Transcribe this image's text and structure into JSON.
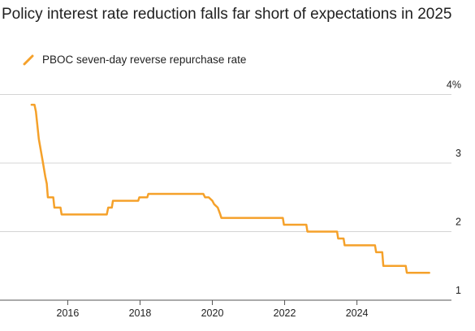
{
  "chart_data": {
    "type": "line",
    "title": "Policy interest rate reduction falls far short of expectations in 2025",
    "xlabel": "",
    "ylabel": "",
    "xlim": [
      2014.8,
      2026.3
    ],
    "ylim": [
      1,
      4.1
    ],
    "x_ticks": [
      2016,
      2018,
      2020,
      2022,
      2024
    ],
    "x_tick_labels": [
      "2016",
      "2018",
      "2020",
      "2022",
      "2024"
    ],
    "y_ticks": [
      1,
      2,
      3,
      4
    ],
    "y_tick_labels": [
      "1",
      "2",
      "3",
      "4%"
    ],
    "grid": "horizontal",
    "legend_position": "top-left",
    "series": [
      {
        "name": "PBOC seven-day reverse repurchase rate",
        "color": "#f5a12a",
        "points": [
          [
            2015.0,
            3.85
          ],
          [
            2015.08,
            3.85
          ],
          [
            2015.12,
            3.75
          ],
          [
            2015.15,
            3.6
          ],
          [
            2015.2,
            3.35
          ],
          [
            2015.3,
            3.05
          ],
          [
            2015.38,
            2.8
          ],
          [
            2015.42,
            2.7
          ],
          [
            2015.45,
            2.5
          ],
          [
            2015.6,
            2.5
          ],
          [
            2015.63,
            2.35
          ],
          [
            2015.8,
            2.35
          ],
          [
            2015.83,
            2.25
          ],
          [
            2017.08,
            2.25
          ],
          [
            2017.12,
            2.35
          ],
          [
            2017.22,
            2.35
          ],
          [
            2017.25,
            2.45
          ],
          [
            2017.95,
            2.45
          ],
          [
            2017.98,
            2.5
          ],
          [
            2018.2,
            2.5
          ],
          [
            2018.23,
            2.55
          ],
          [
            2019.75,
            2.55
          ],
          [
            2019.8,
            2.5
          ],
          [
            2019.9,
            2.5
          ],
          [
            2020.0,
            2.45
          ],
          [
            2020.05,
            2.4
          ],
          [
            2020.15,
            2.35
          ],
          [
            2020.22,
            2.25
          ],
          [
            2020.25,
            2.2
          ],
          [
            2021.95,
            2.2
          ],
          [
            2021.98,
            2.1
          ],
          [
            2022.6,
            2.1
          ],
          [
            2022.63,
            2.0
          ],
          [
            2023.45,
            2.0
          ],
          [
            2023.48,
            1.9
          ],
          [
            2023.63,
            1.9
          ],
          [
            2023.66,
            1.8
          ],
          [
            2024.5,
            1.8
          ],
          [
            2024.53,
            1.7
          ],
          [
            2024.7,
            1.7
          ],
          [
            2024.73,
            1.5
          ],
          [
            2025.35,
            1.5
          ],
          [
            2025.38,
            1.4
          ],
          [
            2026.0,
            1.4
          ]
        ]
      }
    ]
  }
}
